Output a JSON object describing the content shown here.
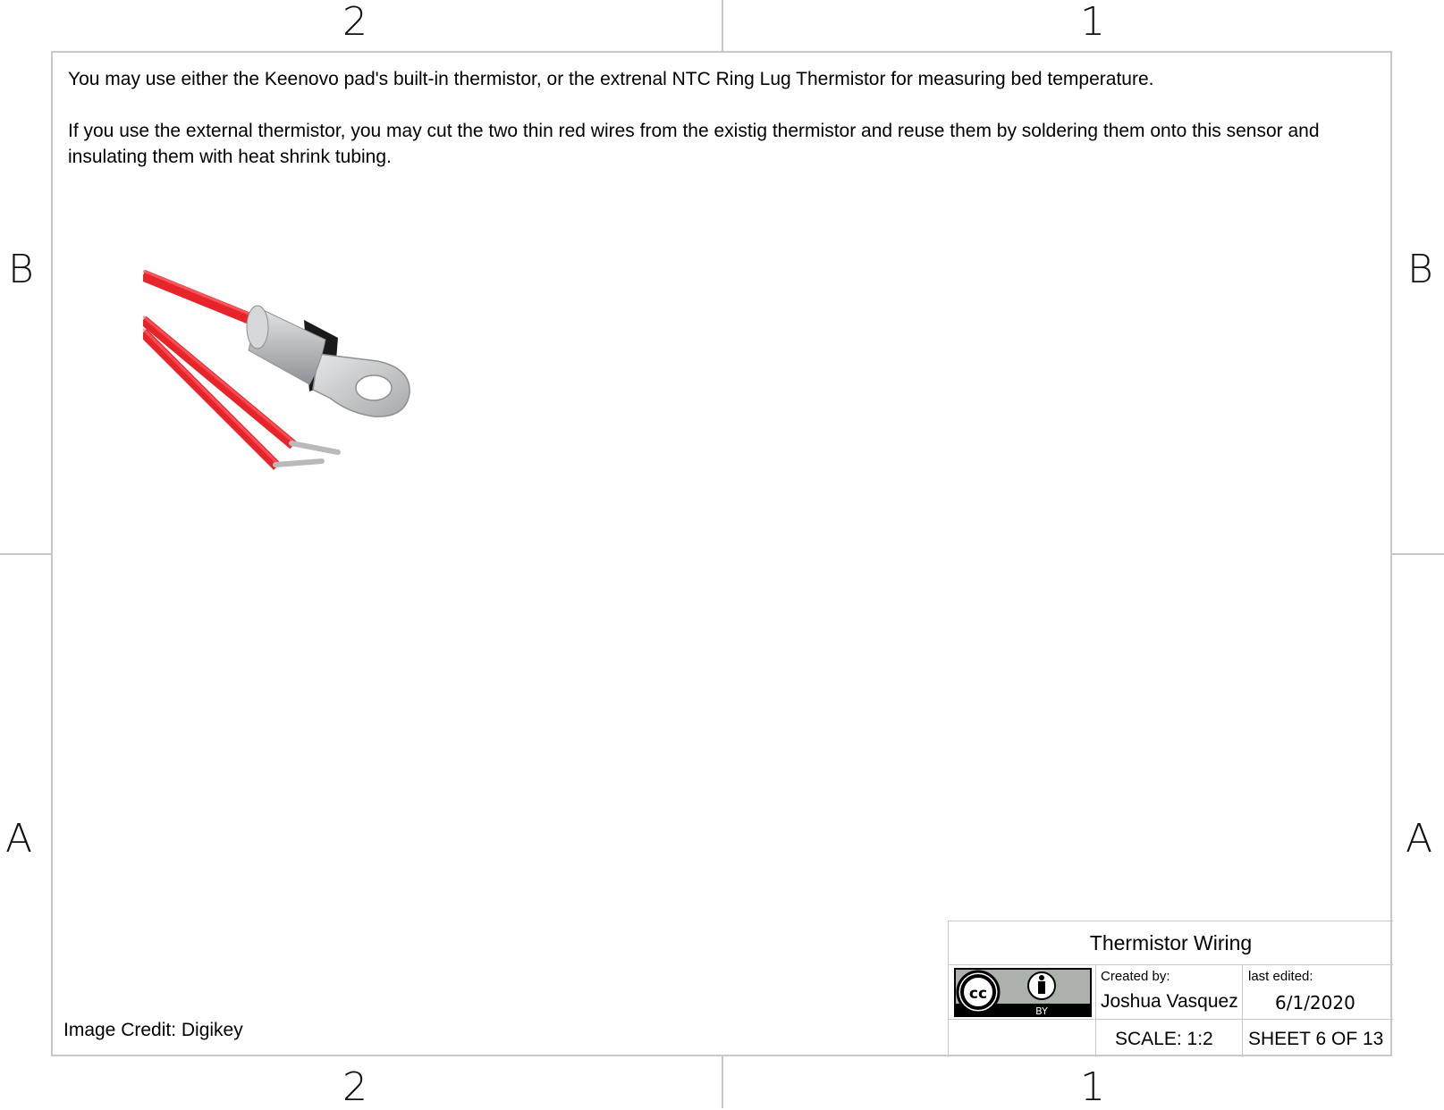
{
  "zones": {
    "top_left": "2",
    "top_right": "1",
    "left_upper": "B",
    "right_upper": "B",
    "left_lower": "A",
    "right_lower": "A",
    "bottom_left": "2",
    "bottom_right": "1"
  },
  "notes": {
    "paragraph_1": "You may use either the Keenovo pad's built-in thermistor, or the extrenal NTC Ring Lug Thermistor for measuring bed temperature.",
    "paragraph_2": "If you use the external thermistor, you may cut the two thin red wires from the existig thermistor and reuse them by soldering them onto this sensor and insulating them with heat shrink tubing."
  },
  "image_credit": "Image Credit: Digikey",
  "title_block": {
    "title": "Thermistor Wiring",
    "license_badge_text": "BY",
    "created_by_label": "Created by:",
    "created_by": "Joshua Vasquez",
    "last_edited_label": "last edited:",
    "last_edited": "6/1/2020",
    "scale": "SCALE: 1:2",
    "sheet": "SHEET 6 OF 13"
  },
  "colors": {
    "frame": "#c8c8c8",
    "wire_red": "#e8242b",
    "lug_silver": "#c9cbcd",
    "heat_shrink": "#1a1a1a"
  }
}
